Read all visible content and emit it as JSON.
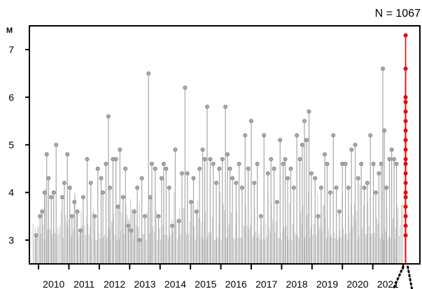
{
  "chart_data": {
    "type": "scatter",
    "subtype": "stem",
    "title": "",
    "annotation": "N = 1067",
    "ylabel": "M",
    "xlabel": "",
    "x_tick_labels": [
      "2010",
      "2011",
      "2012",
      "2013",
      "2014",
      "2015",
      "2016",
      "2017",
      "2018",
      "2019",
      "2020",
      "2021"
    ],
    "y_tick_labels": [
      "3",
      "4",
      "5",
      "6",
      "7"
    ],
    "xlim": [
      2009.7,
      2022.55
    ],
    "ylim": [
      2.5,
      7.5
    ],
    "baseline": 2.5,
    "grid": false,
    "colors": {
      "background": "#c8c8c8",
      "highlight": "#ff0000"
    },
    "series": [
      {
        "name": "",
        "color": "#a8a8a8",
        "points": [
          [
            2009.92,
            3.1
          ],
          [
            2010.05,
            3.5
          ],
          [
            2010.12,
            3.6
          ],
          [
            2010.2,
            4.0
          ],
          [
            2010.27,
            4.8
          ],
          [
            2010.33,
            4.3
          ],
          [
            2010.42,
            3.9
          ],
          [
            2010.5,
            4.0
          ],
          [
            2010.58,
            5.0
          ],
          [
            2010.78,
            3.9
          ],
          [
            2010.85,
            4.2
          ],
          [
            2010.95,
            4.8
          ],
          [
            2011.03,
            4.1
          ],
          [
            2011.1,
            3.5
          ],
          [
            2011.18,
            3.8
          ],
          [
            2011.28,
            3.6
          ],
          [
            2011.38,
            3.2
          ],
          [
            2011.47,
            3.9
          ],
          [
            2011.6,
            4.7
          ],
          [
            2011.72,
            4.2
          ],
          [
            2011.85,
            3.5
          ],
          [
            2011.95,
            4.5
          ],
          [
            2012.06,
            4.3
          ],
          [
            2012.12,
            4.0
          ],
          [
            2012.22,
            4.6
          ],
          [
            2012.3,
            5.6
          ],
          [
            2012.35,
            4.1
          ],
          [
            2012.45,
            4.7
          ],
          [
            2012.55,
            4.7
          ],
          [
            2012.62,
            3.7
          ],
          [
            2012.68,
            4.9
          ],
          [
            2012.78,
            3.9
          ],
          [
            2012.86,
            4.5
          ],
          [
            2012.96,
            3.3
          ],
          [
            2013.05,
            3.2
          ],
          [
            2013.15,
            3.6
          ],
          [
            2013.25,
            4.1
          ],
          [
            2013.32,
            3.0
          ],
          [
            2013.4,
            4.3
          ],
          [
            2013.5,
            3.5
          ],
          [
            2013.62,
            6.5
          ],
          [
            2013.68,
            3.9
          ],
          [
            2013.73,
            4.6
          ],
          [
            2013.84,
            4.5
          ],
          [
            2013.95,
            3.5
          ],
          [
            2014.05,
            4.3
          ],
          [
            2014.12,
            4.6
          ],
          [
            2014.2,
            4.5
          ],
          [
            2014.3,
            4.1
          ],
          [
            2014.4,
            3.3
          ],
          [
            2014.5,
            4.9
          ],
          [
            2014.62,
            3.4
          ],
          [
            2014.72,
            4.4
          ],
          [
            2014.82,
            6.2
          ],
          [
            2014.9,
            4.4
          ],
          [
            2015.02,
            3.8
          ],
          [
            2015.1,
            4.3
          ],
          [
            2015.2,
            3.6
          ],
          [
            2015.3,
            4.5
          ],
          [
            2015.4,
            4.9
          ],
          [
            2015.47,
            4.7
          ],
          [
            2015.55,
            5.8
          ],
          [
            2015.65,
            4.7
          ],
          [
            2015.75,
            4.6
          ],
          [
            2015.85,
            4.2
          ],
          [
            2015.95,
            4.5
          ],
          [
            2016.05,
            4.7
          ],
          [
            2016.15,
            5.8
          ],
          [
            2016.22,
            4.8
          ],
          [
            2016.3,
            4.5
          ],
          [
            2016.38,
            4.3
          ],
          [
            2016.5,
            4.2
          ],
          [
            2016.6,
            4.6
          ],
          [
            2016.7,
            4.1
          ],
          [
            2016.8,
            5.2
          ],
          [
            2016.9,
            4.5
          ],
          [
            2017.0,
            5.5
          ],
          [
            2017.1,
            4.2
          ],
          [
            2017.2,
            4.6
          ],
          [
            2017.32,
            3.5
          ],
          [
            2017.42,
            5.2
          ],
          [
            2017.55,
            4.4
          ],
          [
            2017.65,
            4.7
          ],
          [
            2017.75,
            4.5
          ],
          [
            2017.85,
            3.8
          ],
          [
            2017.95,
            5.1
          ],
          [
            2018.05,
            4.6
          ],
          [
            2018.12,
            4.7
          ],
          [
            2018.2,
            4.3
          ],
          [
            2018.3,
            4.5
          ],
          [
            2018.4,
            4.1
          ],
          [
            2018.5,
            5.2
          ],
          [
            2018.6,
            4.7
          ],
          [
            2018.68,
            5.0
          ],
          [
            2018.75,
            5.5
          ],
          [
            2018.82,
            5.1
          ],
          [
            2018.9,
            5.7
          ],
          [
            2018.98,
            4.4
          ],
          [
            2019.1,
            4.3
          ],
          [
            2019.2,
            3.5
          ],
          [
            2019.3,
            4.1
          ],
          [
            2019.42,
            4.8
          ],
          [
            2019.5,
            4.6
          ],
          [
            2019.6,
            4.0
          ],
          [
            2019.7,
            5.2
          ],
          [
            2019.8,
            4.1
          ],
          [
            2019.9,
            3.6
          ],
          [
            2020.0,
            4.6
          ],
          [
            2020.1,
            4.6
          ],
          [
            2020.2,
            4.1
          ],
          [
            2020.3,
            4.9
          ],
          [
            2020.42,
            5.0
          ],
          [
            2020.52,
            4.3
          ],
          [
            2020.62,
            4.6
          ],
          [
            2020.72,
            4.1
          ],
          [
            2020.82,
            4.2
          ],
          [
            2020.92,
            5.2
          ],
          [
            2021.02,
            4.6
          ],
          [
            2021.1,
            4.0
          ],
          [
            2021.2,
            4.4
          ],
          [
            2021.28,
            4.6
          ],
          [
            2021.33,
            6.6
          ],
          [
            2021.38,
            5.3
          ],
          [
            2021.45,
            4.1
          ],
          [
            2021.55,
            4.7
          ],
          [
            2021.62,
            4.9
          ],
          [
            2021.7,
            4.7
          ],
          [
            2021.78,
            4.6
          ]
        ]
      },
      {
        "name": "",
        "color": "#ff0000",
        "points": [
          [
            2022.08,
            7.3
          ],
          [
            2022.08,
            6.6
          ],
          [
            2022.08,
            6.0
          ],
          [
            2022.08,
            5.9
          ],
          [
            2022.08,
            5.7
          ],
          [
            2022.08,
            5.5
          ],
          [
            2022.08,
            5.3
          ],
          [
            2022.08,
            5.1
          ],
          [
            2022.08,
            4.9
          ],
          [
            2022.08,
            4.7
          ],
          [
            2022.08,
            4.6
          ],
          [
            2022.08,
            4.4
          ],
          [
            2022.08,
            4.2
          ],
          [
            2022.08,
            4.0
          ],
          [
            2022.08,
            3.9
          ],
          [
            2022.08,
            3.7
          ],
          [
            2022.08,
            3.5
          ],
          [
            2022.08,
            3.3
          ],
          [
            2022.08,
            3.1
          ]
        ]
      }
    ]
  }
}
